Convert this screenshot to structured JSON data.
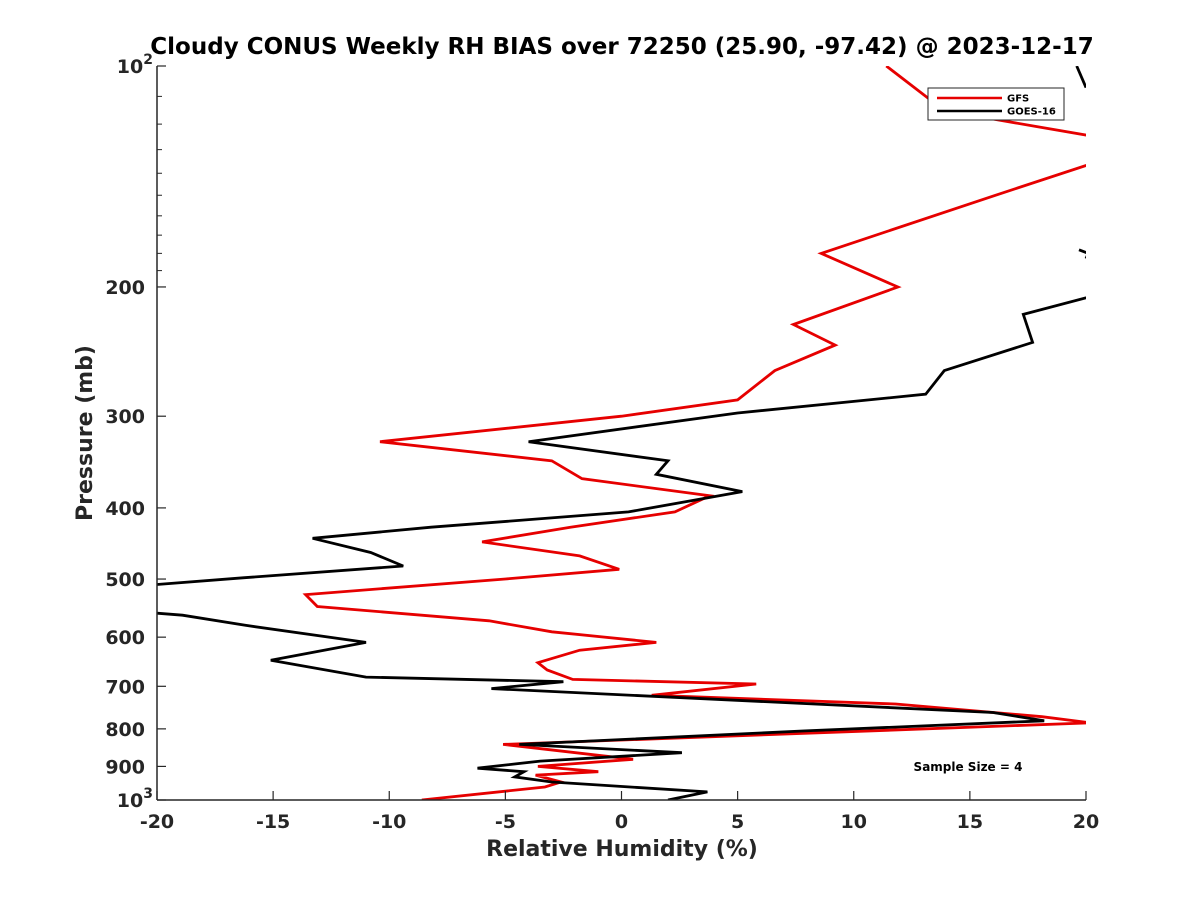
{
  "chart_data": {
    "type": "line",
    "title": "Cloudy CONUS Weekly RH BIAS over 72250 (25.90, -97.42) @ 2023-12-17",
    "xlabel": "Relative Humidity (%)",
    "ylabel": "Pressure (mb)",
    "xlim": [
      -20,
      20
    ],
    "ylim": [
      100,
      1000
    ],
    "yscale": "log",
    "y_reversed": true,
    "grid": false,
    "legend_position": "top-right",
    "x_ticks": [
      "-20",
      "-15",
      "-10",
      "-5",
      "0",
      "5",
      "10",
      "15",
      "20"
    ],
    "x_tick_values": [
      -20,
      -15,
      -10,
      -5,
      0,
      5,
      10,
      15,
      20
    ],
    "y_ticks": [
      {
        "value": 100,
        "label": "10",
        "sup": "2"
      },
      {
        "value": 200,
        "label": "200",
        "sup": ""
      },
      {
        "value": 300,
        "label": "300",
        "sup": ""
      },
      {
        "value": 400,
        "label": "400",
        "sup": ""
      },
      {
        "value": 500,
        "label": "500",
        "sup": ""
      },
      {
        "value": 600,
        "label": "600",
        "sup": ""
      },
      {
        "value": 700,
        "label": "700",
        "sup": ""
      },
      {
        "value": 800,
        "label": "800",
        "sup": ""
      },
      {
        "value": 900,
        "label": "900",
        "sup": ""
      },
      {
        "value": 1000,
        "label": "10",
        "sup": "3"
      }
    ],
    "annotation": "Sample Size = 4",
    "series": [
      {
        "name": "GFS",
        "color": "#e60000",
        "points": [
          [
            11.4,
            100
          ],
          [
            13.9,
            115
          ],
          [
            20.5,
            125
          ],
          null,
          [
            20.5,
            135
          ],
          [
            16.1,
            150
          ],
          [
            8.6,
            180
          ],
          [
            11.9,
            200
          ],
          [
            7.4,
            225
          ],
          [
            9.2,
            240
          ],
          [
            6.6,
            260
          ],
          [
            5.0,
            285
          ],
          [
            0.0,
            300
          ],
          [
            -10.4,
            325
          ],
          [
            -3.0,
            345
          ],
          [
            -1.7,
            365
          ],
          [
            3.8,
            385
          ],
          [
            2.3,
            405
          ],
          [
            -2.2,
            425
          ],
          [
            -6.0,
            445
          ],
          [
            -1.8,
            465
          ],
          [
            -0.1,
            485
          ],
          [
            -5.0,
            500
          ],
          [
            -13.6,
            525
          ],
          [
            -13.1,
            545
          ],
          [
            -5.7,
            570
          ],
          [
            -3.0,
            590
          ],
          [
            1.5,
            610
          ],
          [
            -1.8,
            625
          ],
          [
            -3.6,
            650
          ],
          [
            -3.2,
            665
          ],
          [
            -2.1,
            685
          ],
          [
            5.8,
            695
          ],
          [
            1.3,
            720
          ],
          [
            11.8,
            740
          ],
          [
            18.1,
            770
          ],
          [
            20.2,
            785
          ],
          [
            -5.1,
            840
          ],
          [
            0.5,
            880
          ],
          [
            -3.6,
            900
          ],
          [
            -1.0,
            915
          ],
          [
            -3.7,
            925
          ],
          [
            -2.6,
            945
          ],
          [
            -3.3,
            960
          ],
          [
            -8.6,
            1000
          ]
        ]
      },
      {
        "name": "GOES-16",
        "color": "#000000",
        "points": [
          [
            19.6,
            100
          ],
          [
            20.0,
            107
          ],
          null,
          [
            19.7,
            178
          ],
          [
            20.1,
            180
          ],
          [
            20.0,
            183
          ],
          null,
          [
            20.5,
            205
          ],
          [
            17.3,
            218
          ],
          [
            17.7,
            238
          ],
          [
            13.9,
            260
          ],
          [
            13.1,
            280
          ],
          [
            5.0,
            297
          ],
          [
            -4.0,
            325
          ],
          [
            2.0,
            345
          ],
          [
            1.5,
            360
          ],
          [
            5.2,
            380
          ],
          [
            0.3,
            405
          ],
          [
            -8.2,
            425
          ],
          [
            -13.3,
            440
          ],
          [
            -10.8,
            460
          ],
          [
            -9.4,
            480
          ],
          [
            -16.3,
            498
          ],
          [
            -20.5,
            510
          ],
          null,
          [
            -20.5,
            555
          ],
          [
            -18.9,
            560
          ],
          [
            -16.2,
            578
          ],
          [
            -11.0,
            610
          ],
          [
            -15.1,
            645
          ],
          [
            -11.0,
            680
          ],
          [
            -2.5,
            690
          ],
          [
            -5.6,
            705
          ],
          [
            16.0,
            760
          ],
          [
            18.2,
            780
          ],
          [
            7.9,
            805
          ],
          [
            -4.4,
            840
          ],
          [
            2.6,
            862
          ],
          [
            -3.5,
            885
          ],
          [
            -6.2,
            905
          ],
          [
            -4.2,
            915
          ],
          [
            -4.6,
            930
          ],
          [
            -3.0,
            945
          ],
          [
            3.7,
            975
          ],
          [
            2.0,
            1000
          ]
        ]
      }
    ]
  }
}
